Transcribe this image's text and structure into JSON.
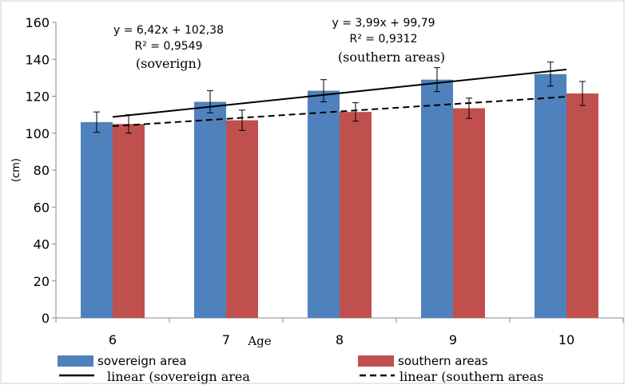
{
  "chart_data": {
    "type": "bar",
    "ylabel": "(cm)",
    "xlabel": "Age",
    "categories": [
      "6",
      "7",
      "8",
      "9",
      "10"
    ],
    "ylim": [
      0,
      160
    ],
    "yticks": [
      0,
      20,
      40,
      60,
      80,
      100,
      120,
      140,
      160
    ],
    "series": [
      {
        "name": "sovereign area",
        "color": "#4f81bd",
        "values": [
          106,
          117,
          123,
          129,
          132
        ],
        "errors": [
          5.5,
          6,
          6,
          6.5,
          6.5
        ]
      },
      {
        "name": "southern areas",
        "color": "#c0504d",
        "values": [
          105,
          107,
          111.5,
          113.5,
          121.5
        ],
        "errors": [
          5,
          5.5,
          5,
          5.5,
          6.5
        ]
      }
    ],
    "trendlines": [
      {
        "name": "linear (sovereign area",
        "style": "solid",
        "equation": "y = 6,42x + 102,38",
        "r2": "R² = 0,9549",
        "label": "(soverign)",
        "slope": 6.42,
        "intercept": 102.38
      },
      {
        "name": "linear (southern areas",
        "style": "dashed",
        "equation": "y = 3,99x + 99,79",
        "r2": "R² = 0,9312",
        "label": "(southern  areas)",
        "slope": 3.99,
        "intercept": 99.79
      }
    ],
    "grid": false,
    "legend": "bottom"
  }
}
